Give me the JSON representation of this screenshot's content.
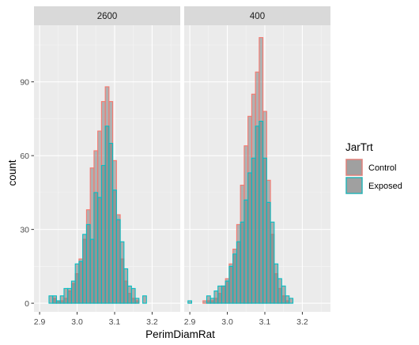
{
  "chart_data": {
    "type": "histogram",
    "xlabel": "PerimDiamRat",
    "ylabel": "count",
    "xlim": [
      2.885,
      3.275
    ],
    "ylim": [
      -3.5,
      113
    ],
    "x_ticks": [
      2.9,
      3.0,
      3.1,
      3.2
    ],
    "x_tick_labels": [
      "2.9",
      "3.0",
      "3.1",
      "3.2"
    ],
    "y_ticks": [
      0,
      30,
      60,
      90
    ],
    "y_tick_labels": [
      "0",
      "30",
      "60",
      "90"
    ],
    "bin_start": 2.9,
    "bin_width": 0.01,
    "grid": true,
    "legend": {
      "title": "JarTrt",
      "position": "right",
      "entries": [
        {
          "label": "Control",
          "fill": "#F8766D",
          "outline": "#F8766D"
        },
        {
          "label": "Exposed",
          "fill": "#00BFC4",
          "outline": "#00BFC4"
        }
      ]
    },
    "panels": [
      {
        "strip": "2600",
        "series": [
          {
            "name": "Control",
            "values": [
              0,
              0,
              0,
              0,
              2,
              1,
              1,
              2,
              5,
              8,
              12,
              18,
              26,
              38,
              55,
              62,
              70,
              82,
              88,
              82,
              58,
              36,
              18,
              9,
              4,
              2,
              1,
              0,
              0,
              0,
              0,
              0,
              0,
              0,
              0,
              0,
              0,
              0
            ]
          },
          {
            "name": "Exposed",
            "values": [
              0,
              0,
              0,
              3,
              3,
              1,
              3,
              6,
              6,
              9,
              16,
              17,
              28,
              32,
              26,
              45,
              43,
              56,
              72,
              65,
              46,
              34,
              25,
              14,
              7,
              6,
              2,
              0,
              3,
              0,
              0,
              0,
              0,
              0,
              0,
              0,
              0,
              0
            ]
          }
        ]
      },
      {
        "strip": "400",
        "series": [
          {
            "name": "Control",
            "values": [
              0,
              0,
              0,
              0,
              1,
              1,
              1,
              2,
              4,
              7,
              10,
              16,
              22,
              32,
              48,
              64,
              76,
              85,
              94,
              108,
              78,
              50,
              28,
              12,
              6,
              3,
              1,
              0,
              0,
              0,
              0,
              0,
              0,
              0,
              0,
              0,
              0,
              0
            ]
          },
          {
            "name": "Exposed",
            "values": [
              1,
              0,
              0,
              0,
              0,
              3,
              2,
              5,
              7,
              7,
              9,
              15,
              20,
              25,
              33,
              42,
              53,
              59,
              72,
              74,
              59,
              41,
              33,
              16,
              10,
              7,
              3,
              2,
              0,
              0,
              0,
              0,
              0,
              0,
              0,
              0,
              0,
              0
            ]
          }
        ]
      }
    ]
  }
}
